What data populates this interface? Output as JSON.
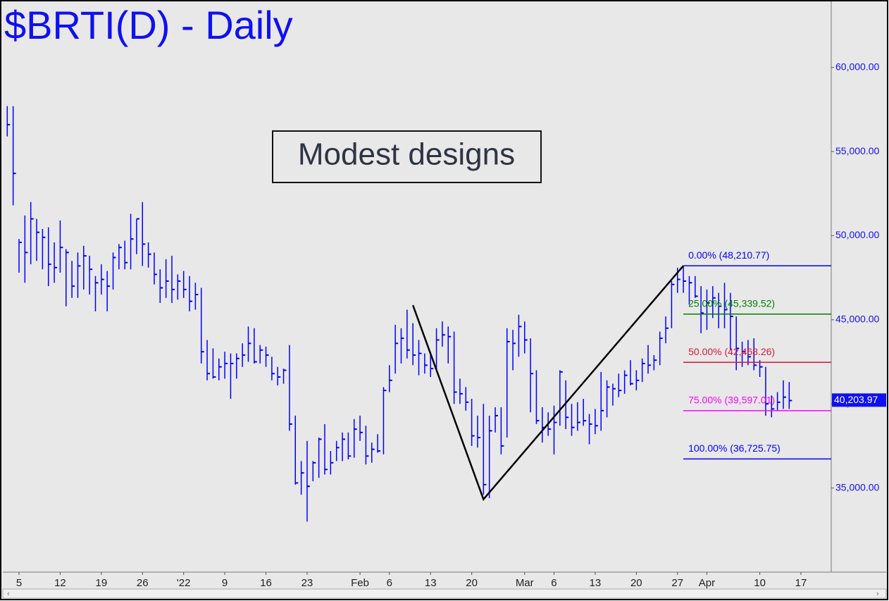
{
  "chart_data": {
    "type": "ohlc",
    "title": "$BRTI(D) - Daily",
    "annotation": "Modest designs",
    "color": "#0000ff",
    "bars": {
      "high": [
        57700,
        57700,
        49800,
        51200,
        52000,
        51000,
        50400,
        50500,
        49600,
        50900,
        49200,
        48500,
        49000,
        49400,
        48800,
        47600,
        48300,
        47900,
        49000,
        49500,
        49700,
        51300,
        51000,
        52000,
        49600,
        49000,
        48000,
        48600,
        48800,
        47700,
        47900,
        47600,
        47200,
        46900,
        43800,
        43300,
        42700,
        43100,
        43000,
        43000,
        43600,
        44600,
        44500,
        43500,
        43400,
        42800,
        42200,
        42100,
        43500,
        39300,
        36600,
        37800,
        36600,
        38000,
        38800,
        37200,
        37800,
        38300,
        38300,
        39100,
        39300,
        38700,
        37700,
        38200,
        41000,
        42300,
        44700,
        44500,
        45600,
        44800,
        43800,
        43000,
        43000,
        44500,
        44900,
        44600,
        44300,
        41500,
        41000,
        40300,
        39300,
        40000,
        39300,
        39800,
        39800,
        44500,
        44400,
        45300,
        44900,
        43900,
        42000,
        39800,
        39500,
        39900,
        42000,
        41400,
        40000,
        40100,
        40300,
        39400,
        39700,
        41900,
        41400,
        41200,
        41800,
        42000,
        42600,
        42000,
        42700,
        43500,
        42900,
        44300,
        45200,
        47300,
        48100,
        48200,
        47600,
        47600,
        47000,
        46800,
        47000,
        46600,
        47200,
        46600,
        45200,
        43700,
        43800,
        43900,
        42600,
        42200,
        40500,
        40700,
        41400,
        41300
      ],
      "low": [
        55900,
        51800,
        47800,
        47200,
        48300,
        48500,
        48000,
        47000,
        47200,
        47800,
        45800,
        46300,
        46300,
        46800,
        46500,
        45500,
        46500,
        45500,
        46800,
        48000,
        48000,
        48000,
        48900,
        48200,
        48100,
        47100,
        46000,
        46300,
        46000,
        46200,
        46300,
        45500,
        45600,
        42400,
        41400,
        41500,
        41400,
        41500,
        40300,
        41500,
        42200,
        42500,
        42400,
        42400,
        42200,
        41400,
        41100,
        41200,
        38400,
        35200,
        34600,
        33000,
        35400,
        35600,
        35800,
        35800,
        36600,
        36600,
        36700,
        36800,
        37800,
        36400,
        36500,
        37100,
        37000,
        40700,
        41800,
        42400,
        42700,
        42300,
        41700,
        41800,
        41600,
        42000,
        43400,
        42400,
        40000,
        40000,
        39600,
        37500,
        37400,
        34600,
        34400,
        38300,
        37000,
        38000,
        42000,
        42800,
        43000,
        39500,
        38800,
        37700,
        38100,
        37000,
        38700,
        38500,
        38100,
        38400,
        38700,
        37600,
        38200,
        38400,
        39200,
        39900,
        40400,
        40600,
        41100,
        40800,
        41300,
        41800,
        42000,
        42300,
        43600,
        44500,
        46600,
        46600,
        45900,
        46300,
        44200,
        44400,
        45100,
        44500,
        44500,
        43200,
        42000,
        42200,
        42300,
        42000,
        41600,
        39300,
        39200,
        39600,
        39700,
        39700
      ],
      "close": [
        56600,
        53700,
        49600,
        49000,
        51000,
        50200,
        49900,
        48300,
        48100,
        49300,
        49000,
        47000,
        48200,
        48800,
        48000,
        47200,
        47400,
        47000,
        48700,
        49300,
        48400,
        49800,
        51000,
        49500,
        48900,
        47700,
        46900,
        47300,
        46800,
        47300,
        46800,
        46100,
        46500,
        43100,
        41800,
        41600,
        42200,
        42400,
        42400,
        42700,
        42900,
        43600,
        42500,
        43200,
        42900,
        41800,
        41600,
        42000,
        38800,
        35300,
        35900,
        35100,
        36500,
        37900,
        36100,
        36500,
        37400,
        37900,
        36900,
        38500,
        38300,
        36900,
        37300,
        37200,
        40800,
        41400,
        43600,
        43900,
        43200,
        42900,
        43000,
        42300,
        42100,
        43800,
        44100,
        44000,
        40700,
        40600,
        40100,
        38100,
        38000,
        35200,
        38400,
        39300,
        37500,
        43700,
        43600,
        44600,
        43800,
        41800,
        39000,
        38600,
        38500,
        38900,
        41900,
        39200,
        38600,
        38900,
        39000,
        38800,
        38700,
        39600,
        41000,
        40900,
        40800,
        41700,
        41200,
        41400,
        42400,
        42300,
        42600,
        43900,
        44500,
        47100,
        47400,
        47300,
        47200,
        46400,
        45400,
        46000,
        46300,
        45800,
        45600,
        45200,
        43300,
        43100,
        42800,
        42300,
        42200,
        40000,
        39700,
        40100,
        40400,
        40200
      ]
    },
    "pattern": {
      "x": [
        69,
        81,
        115
      ],
      "values": [
        45864,
        34329,
        48210.77
      ],
      "color": "#000000"
    },
    "fib_levels": [
      {
        "value": 48210.77,
        "label": "0.00% (48,210.77)",
        "color": "#0000ff"
      },
      {
        "value": 45339.52,
        "label": "25.00% (45,339.52)",
        "color": "#008000"
      },
      {
        "value": 42468.26,
        "label": "50.00% (42,468.26)",
        "color": "#dc143c"
      },
      {
        "value": 39597.01,
        "label": "75.00% (39,597.01)",
        "color": "#ff00ff"
      },
      {
        "value": 36725.75,
        "label": "100.00% (36,725.75)",
        "color": "#0000ff"
      }
    ],
    "last_price": {
      "value": 40203.97,
      "label": "40,203.97"
    },
    "ylim": [
      30000,
      63800
    ],
    "yticks": [
      {
        "value": 35000,
        "label": "35,000.00"
      },
      {
        "value": 40000,
        "label": "40,000.00"
      },
      {
        "value": 45000,
        "label": "45,000.00"
      },
      {
        "value": 50000,
        "label": "50,000.00"
      },
      {
        "value": 55000,
        "label": "55,000.00"
      },
      {
        "value": 60000,
        "label": "60,000.00"
      }
    ],
    "xticks": [
      {
        "value": 2,
        "label": "5"
      },
      {
        "value": 9,
        "label": "12"
      },
      {
        "value": 16,
        "label": "19"
      },
      {
        "value": 23,
        "label": "26"
      },
      {
        "value": 30,
        "label": "'22"
      },
      {
        "value": 37,
        "label": "9"
      },
      {
        "value": 44,
        "label": "16"
      },
      {
        "value": 51,
        "label": "23"
      },
      {
        "value": 60,
        "label": "Feb"
      },
      {
        "value": 65,
        "label": "6"
      },
      {
        "value": 72,
        "label": "13"
      },
      {
        "value": 79,
        "label": "20"
      },
      {
        "value": 88,
        "label": "Mar"
      },
      {
        "value": 93,
        "label": "6"
      },
      {
        "value": 100,
        "label": "13"
      },
      {
        "value": 107,
        "label": "20"
      },
      {
        "value": 114,
        "label": "27"
      },
      {
        "value": 119,
        "label": "Apr"
      },
      {
        "value": 128,
        "label": "10"
      },
      {
        "value": 135,
        "label": "17"
      }
    ]
  }
}
